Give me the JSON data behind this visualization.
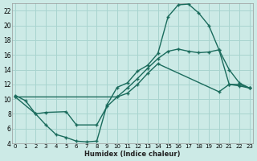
{
  "xlabel": "Humidex (Indice chaleur)",
  "bg_color": "#cceae6",
  "grid_color": "#a8d4cf",
  "line_color": "#1a6b5c",
  "xlim": [
    -0.3,
    23.3
  ],
  "ylim": [
    4,
    23
  ],
  "xticks": [
    0,
    1,
    2,
    3,
    4,
    5,
    6,
    7,
    8,
    9,
    10,
    11,
    12,
    13,
    14,
    15,
    16,
    17,
    18,
    19,
    20,
    21,
    22,
    23
  ],
  "yticks": [
    4,
    6,
    8,
    10,
    12,
    14,
    16,
    18,
    20,
    22
  ],
  "line1_x": [
    0,
    1,
    2,
    3,
    4,
    5,
    6,
    7,
    8,
    9,
    10,
    11,
    12,
    13,
    14,
    15,
    16,
    17,
    18,
    19,
    20,
    21,
    22,
    23
  ],
  "line1_y": [
    10.5,
    9.8,
    8.0,
    6.5,
    5.2,
    4.8,
    4.3,
    4.2,
    4.3,
    9.2,
    11.6,
    12.2,
    13.8,
    14.6,
    16.2,
    21.2,
    22.8,
    22.9,
    21.7,
    20.0,
    16.7,
    14.0,
    12.2,
    11.5
  ],
  "line2_x": [
    0,
    10,
    11,
    12,
    13,
    14,
    15,
    16,
    17,
    18,
    19,
    20,
    21,
    22,
    23
  ],
  "line2_y": [
    10.3,
    10.3,
    11.5,
    12.8,
    14.2,
    15.5,
    16.5,
    16.8,
    16.5,
    16.3,
    16.4,
    16.7,
    12.0,
    12.0,
    11.5
  ],
  "line3_x": [
    0,
    2,
    3,
    5,
    6,
    8,
    9,
    10,
    11,
    12,
    13,
    14,
    20,
    21,
    22,
    23
  ],
  "line3_y": [
    10.3,
    8.0,
    8.2,
    8.3,
    6.5,
    6.5,
    9.0,
    10.3,
    10.8,
    12.0,
    13.5,
    14.8,
    11.0,
    12.0,
    11.8,
    11.5
  ]
}
